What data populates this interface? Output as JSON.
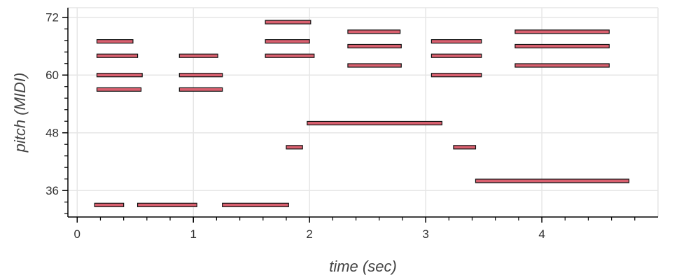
{
  "chart_data": {
    "type": "bar",
    "subtype": "piano-roll",
    "title": "",
    "xlabel": "time (sec)",
    "ylabel": "pitch (MIDI)",
    "xlim": [
      -0.08,
      5.0
    ],
    "ylim": [
      30.5,
      74
    ],
    "x_ticks": [
      0,
      1,
      2,
      3,
      4
    ],
    "x_tick_labels": [
      "0",
      "1",
      "2",
      "3",
      "4"
    ],
    "y_ticks": [
      36,
      48,
      60,
      72
    ],
    "y_tick_labels": [
      "36",
      "48",
      "60",
      "72"
    ],
    "grid": true,
    "legend": "none",
    "colors": {
      "note_fill": "#d9606f",
      "note_stroke": "#111111",
      "grid": "#e6e6e6"
    },
    "notes": [
      {
        "start": 0.17,
        "end": 0.48,
        "pitch": 67
      },
      {
        "start": 0.17,
        "end": 0.52,
        "pitch": 64
      },
      {
        "start": 0.17,
        "end": 0.56,
        "pitch": 60
      },
      {
        "start": 0.17,
        "end": 0.55,
        "pitch": 57
      },
      {
        "start": 0.88,
        "end": 1.21,
        "pitch": 64
      },
      {
        "start": 0.88,
        "end": 1.25,
        "pitch": 60
      },
      {
        "start": 0.88,
        "end": 1.25,
        "pitch": 57
      },
      {
        "start": 1.62,
        "end": 2.01,
        "pitch": 71
      },
      {
        "start": 1.62,
        "end": 2.0,
        "pitch": 67
      },
      {
        "start": 1.62,
        "end": 2.04,
        "pitch": 64
      },
      {
        "start": 2.33,
        "end": 2.78,
        "pitch": 69
      },
      {
        "start": 2.33,
        "end": 2.79,
        "pitch": 66
      },
      {
        "start": 2.33,
        "end": 2.79,
        "pitch": 62
      },
      {
        "start": 3.05,
        "end": 3.48,
        "pitch": 67
      },
      {
        "start": 3.05,
        "end": 3.48,
        "pitch": 64
      },
      {
        "start": 3.05,
        "end": 3.48,
        "pitch": 60
      },
      {
        "start": 3.77,
        "end": 4.58,
        "pitch": 69
      },
      {
        "start": 3.77,
        "end": 4.58,
        "pitch": 66
      },
      {
        "start": 3.77,
        "end": 4.58,
        "pitch": 62
      },
      {
        "start": 0.15,
        "end": 0.4,
        "pitch": 33
      },
      {
        "start": 0.52,
        "end": 1.03,
        "pitch": 33
      },
      {
        "start": 1.25,
        "end": 1.82,
        "pitch": 33
      },
      {
        "start": 1.8,
        "end": 1.94,
        "pitch": 45
      },
      {
        "start": 1.98,
        "end": 3.14,
        "pitch": 50
      },
      {
        "start": 3.24,
        "end": 3.43,
        "pitch": 45
      },
      {
        "start": 3.43,
        "end": 4.75,
        "pitch": 38
      }
    ]
  }
}
